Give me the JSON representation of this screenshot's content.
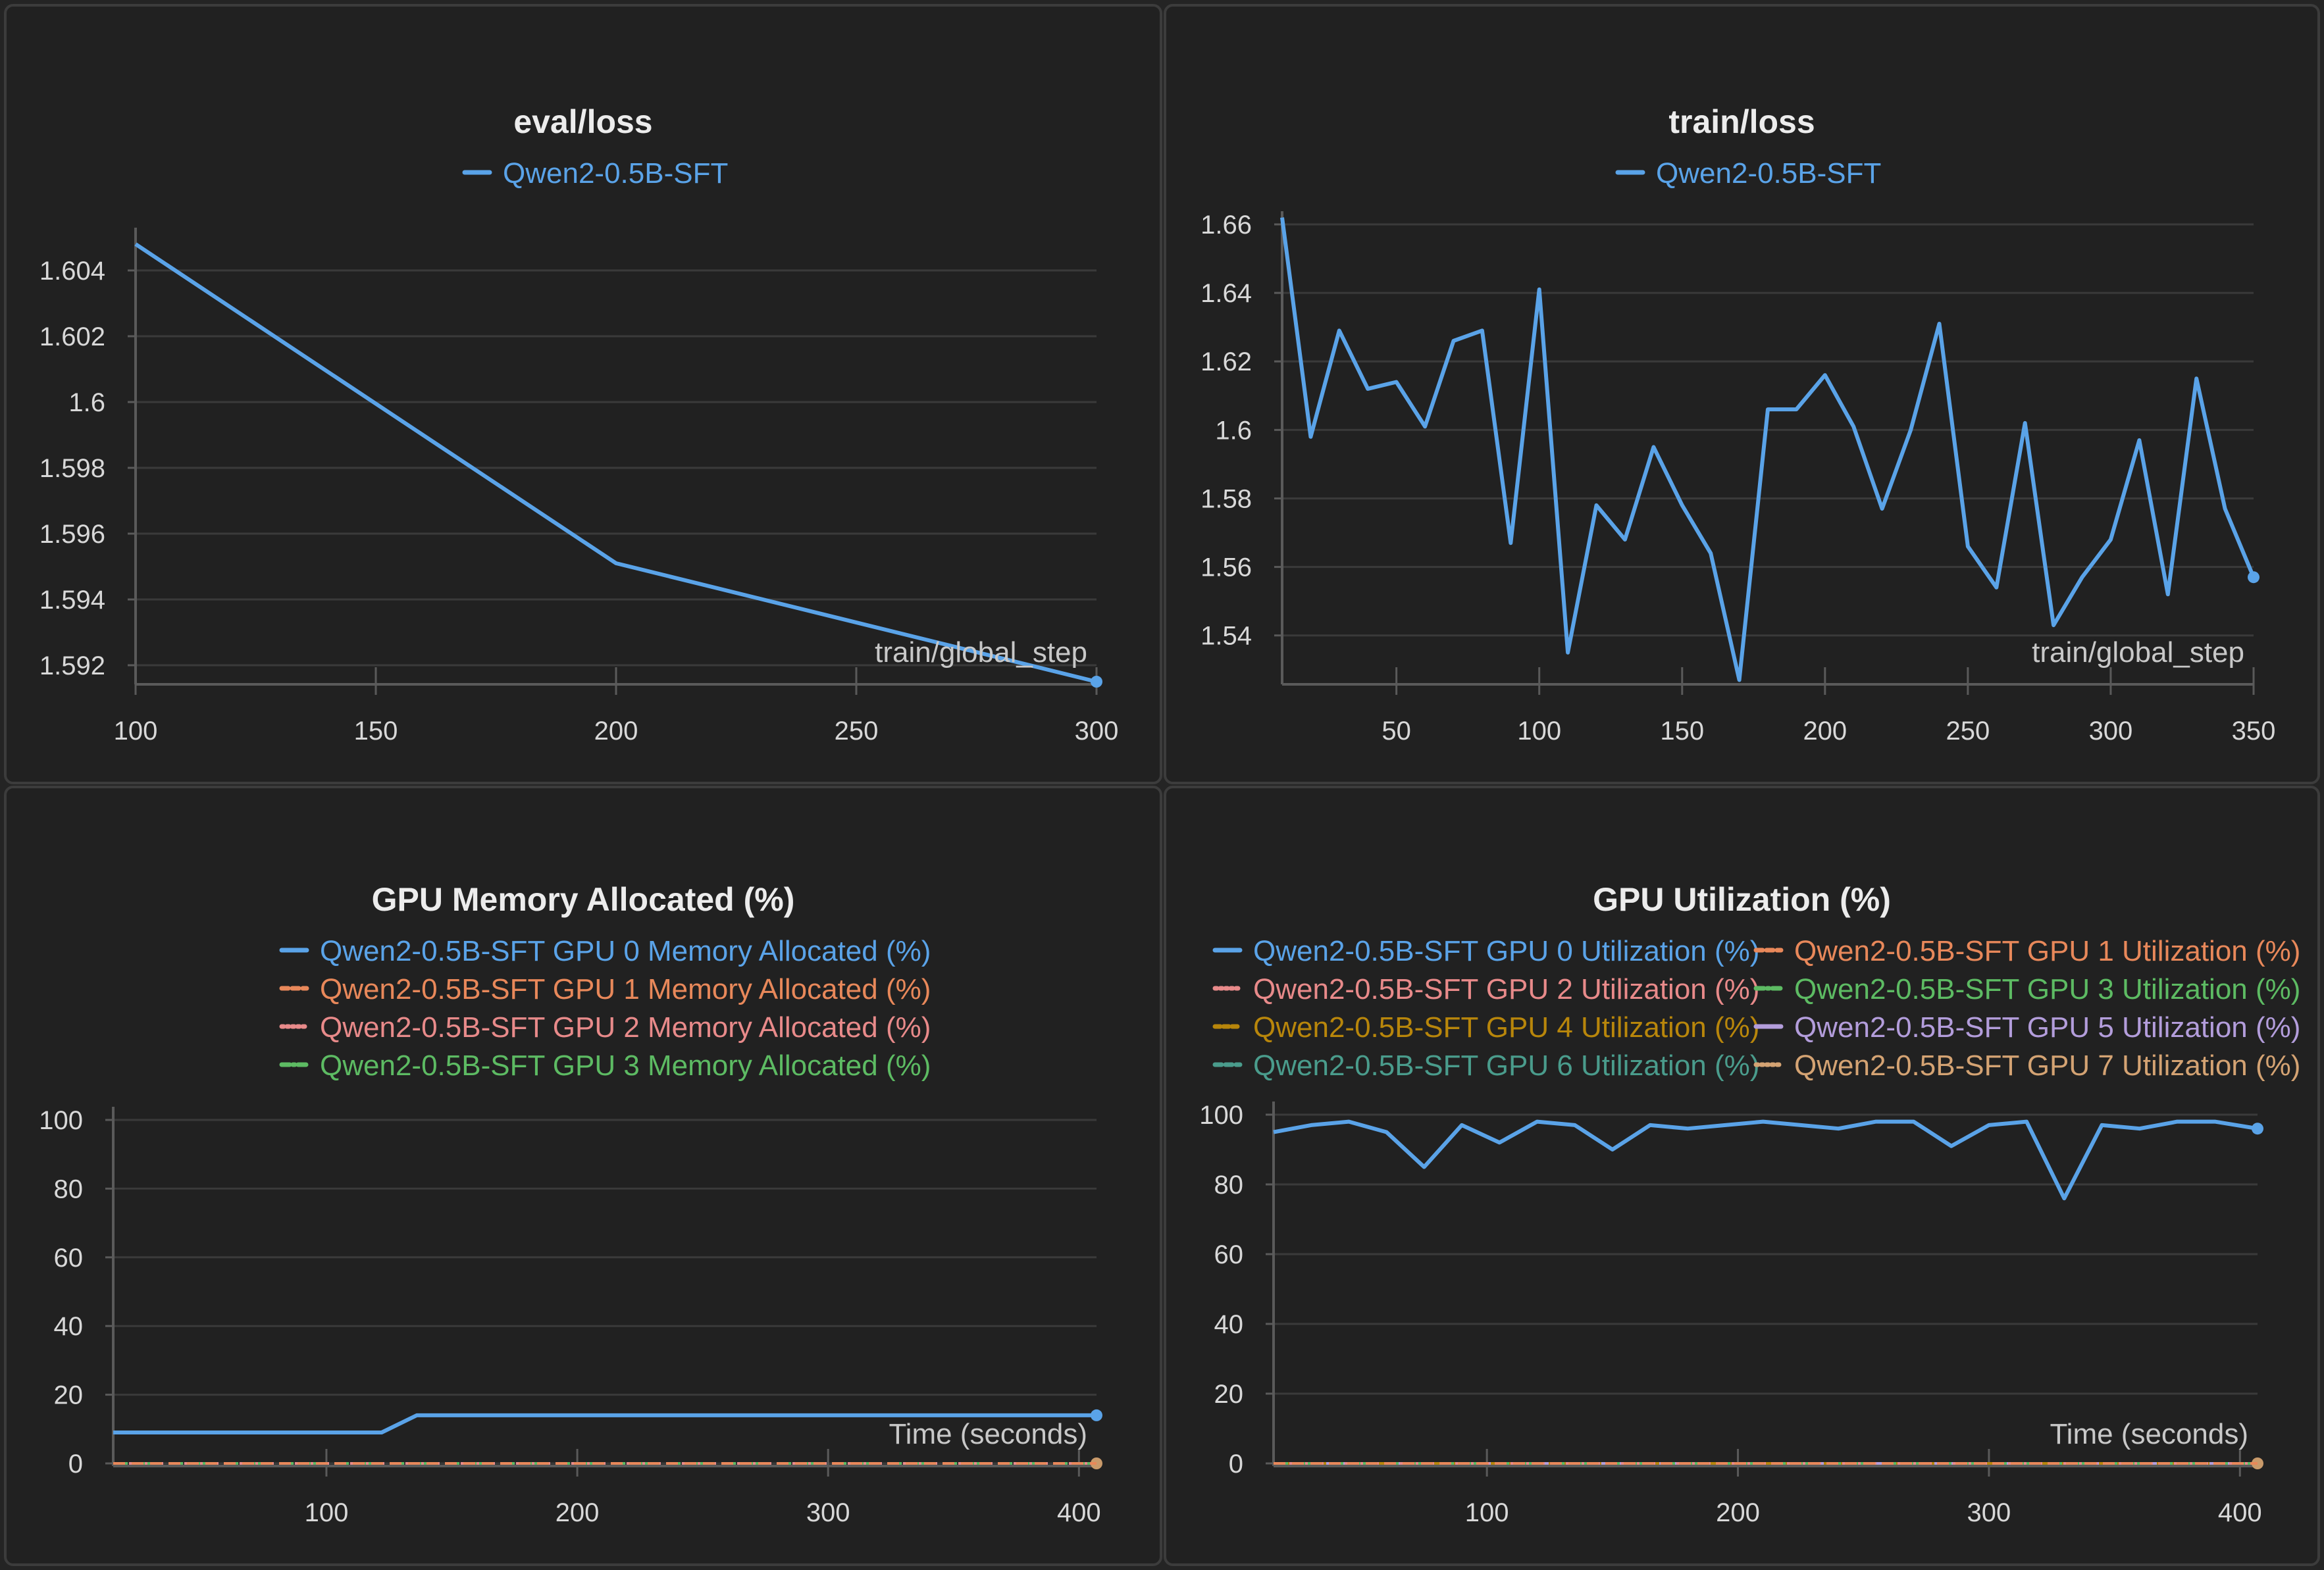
{
  "palette": {
    "background": "#212121",
    "grid": "#3a3a3a",
    "axis": "#5a5a5a",
    "text": "#d8d8d8",
    "series_colors": [
      "#5aa3e8",
      "#e8885a",
      "#e88a8a",
      "#5dbb63",
      "#b8860b",
      "#b39ddb",
      "#4a9c8c",
      "#d4a373"
    ]
  },
  "chart_data": [
    {
      "type": "line",
      "title": "eval/loss",
      "xlabel": "train/global_step",
      "ylabel": "",
      "xlim": [
        100,
        300
      ],
      "ylim": [
        1.5915,
        1.6049
      ],
      "xticks": [
        "100",
        "150",
        "200",
        "250",
        "300"
      ],
      "yticks": [
        "1.592",
        "1.594",
        "1.596",
        "1.598",
        "1.6",
        "1.602",
        "1.604"
      ],
      "legend_columns": 1,
      "series": [
        {
          "name": "Qwen2-0.5B-SFT",
          "x": [
            100,
            200,
            300
          ],
          "y": [
            1.6048,
            1.5951,
            1.5915
          ]
        }
      ]
    },
    {
      "type": "line",
      "title": "train/loss",
      "xlabel": "train/global_step",
      "ylabel": "",
      "xlim": [
        10,
        350
      ],
      "ylim": [
        1.5265,
        1.66
      ],
      "xticks": [
        "50",
        "100",
        "150",
        "200",
        "250",
        "300",
        "350"
      ],
      "yticks": [
        "1.54",
        "1.56",
        "1.58",
        "1.6",
        "1.62",
        "1.64",
        "1.66"
      ],
      "legend_columns": 1,
      "series": [
        {
          "name": "Qwen2-0.5B-SFT",
          "x": [
            10,
            20,
            30,
            40,
            50,
            60,
            70,
            80,
            90,
            100,
            110,
            120,
            130,
            140,
            150,
            160,
            170,
            180,
            190,
            200,
            210,
            220,
            230,
            240,
            250,
            260,
            270,
            280,
            290,
            300,
            310,
            320,
            330,
            340,
            350
          ],
          "y": [
            1.662,
            1.598,
            1.629,
            1.612,
            1.614,
            1.601,
            1.626,
            1.629,
            1.567,
            1.641,
            1.535,
            1.578,
            1.568,
            1.595,
            1.578,
            1.564,
            1.527,
            1.606,
            1.606,
            1.616,
            1.601,
            1.577,
            1.6,
            1.631,
            1.566,
            1.554,
            1.602,
            1.543,
            1.557,
            1.568,
            1.597,
            1.552,
            1.615,
            1.577,
            1.557
          ]
        }
      ]
    },
    {
      "type": "line",
      "title": "GPU Memory Allocated (%)",
      "xlabel": "Time (seconds)",
      "ylabel": "",
      "xlim": [
        15,
        407
      ],
      "ylim": [
        0,
        100
      ],
      "xticks": [
        "100",
        "200",
        "300",
        "400"
      ],
      "yticks": [
        "0",
        "20",
        "40",
        "60",
        "80",
        "100"
      ],
      "legend_columns": 1,
      "series": [
        {
          "name": "Qwen2-0.5B-SFT GPU 0 Memory Allocated (%)",
          "x": [
            15,
            122,
            136,
            407
          ],
          "y": [
            9,
            9,
            14,
            14
          ]
        },
        {
          "name": "Qwen2-0.5B-SFT GPU 1 Memory Allocated (%)",
          "x": [
            15,
            407
          ],
          "y": [
            0,
            0
          ]
        },
        {
          "name": "Qwen2-0.5B-SFT GPU 2 Memory Allocated (%)",
          "x": [
            15,
            407
          ],
          "y": [
            0,
            0
          ]
        },
        {
          "name": "Qwen2-0.5B-SFT GPU 3 Memory Allocated (%)",
          "x": [
            15,
            407
          ],
          "y": [
            0,
            0
          ]
        }
      ]
    },
    {
      "type": "line",
      "title": "GPU Utilization (%)",
      "xlabel": "Time (seconds)",
      "ylabel": "",
      "xlim": [
        15,
        407
      ],
      "ylim": [
        0,
        100
      ],
      "xticks": [
        "100",
        "200",
        "300",
        "400"
      ],
      "yticks": [
        "0",
        "20",
        "40",
        "60",
        "80",
        "100"
      ],
      "legend_columns": 2,
      "series": [
        {
          "name": "Qwen2-0.5B-SFT GPU 0 Utilization (%)",
          "x": [
            15,
            30,
            45,
            60,
            75,
            90,
            105,
            120,
            135,
            150,
            165,
            180,
            195,
            210,
            225,
            240,
            255,
            270,
            285,
            300,
            315,
            330,
            345,
            360,
            375,
            390,
            407
          ],
          "y": [
            95,
            97,
            98,
            95,
            85,
            97,
            92,
            98,
            97,
            90,
            97,
            96,
            97,
            98,
            97,
            96,
            98,
            98,
            91,
            97,
            98,
            76,
            97,
            96,
            98,
            98,
            96
          ]
        },
        {
          "name": "Qwen2-0.5B-SFT GPU 1 Utilization (%)",
          "x": [
            15,
            407
          ],
          "y": [
            0,
            0
          ]
        },
        {
          "name": "Qwen2-0.5B-SFT GPU 2 Utilization (%)",
          "x": [
            15,
            407
          ],
          "y": [
            0,
            0
          ]
        },
        {
          "name": "Qwen2-0.5B-SFT GPU 3 Utilization (%)",
          "x": [
            15,
            407
          ],
          "y": [
            0,
            0
          ]
        },
        {
          "name": "Qwen2-0.5B-SFT GPU 4 Utilization (%)",
          "x": [
            15,
            407
          ],
          "y": [
            0,
            0
          ]
        },
        {
          "name": "Qwen2-0.5B-SFT GPU 5 Utilization (%)",
          "x": [
            15,
            407
          ],
          "y": [
            0,
            0
          ]
        },
        {
          "name": "Qwen2-0.5B-SFT GPU 6 Utilization (%)",
          "x": [
            15,
            407
          ],
          "y": [
            0,
            0
          ]
        },
        {
          "name": "Qwen2-0.5B-SFT GPU 7 Utilization (%)",
          "x": [
            15,
            407
          ],
          "y": [
            0,
            0
          ]
        }
      ]
    }
  ]
}
